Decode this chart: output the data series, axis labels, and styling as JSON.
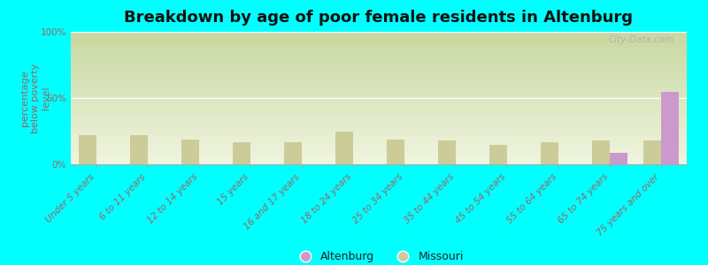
{
  "title": "Breakdown by age of poor female residents in Altenburg",
  "ylabel": "percentage\nbelow poverty\nlevel",
  "categories": [
    "Under 5 years",
    "6 to 11 years",
    "12 to 14 years",
    "15 years",
    "16 and 17 years",
    "18 to 24 years",
    "25 to 34 years",
    "35 to 44 years",
    "45 to 54 years",
    "55 to 64 years",
    "65 to 74 years",
    "75 years and over"
  ],
  "altenburg_values": [
    0,
    0,
    0,
    0,
    0,
    0,
    0,
    0,
    0,
    0,
    9,
    55
  ],
  "missouri_values": [
    22,
    22,
    19,
    17,
    17,
    25,
    19,
    18,
    15,
    17,
    18,
    18
  ],
  "altenburg_color": "#cc99cc",
  "missouri_color": "#cccc99",
  "background_color": "#00ffff",
  "ylim": [
    0,
    100
  ],
  "yticks": [
    0,
    50,
    100
  ],
  "ytick_labels": [
    "0%",
    "50%",
    "100%"
  ],
  "bar_width": 0.35,
  "title_fontsize": 13,
  "axis_label_fontsize": 8,
  "tick_fontsize": 7.5,
  "legend_label_altenburg": "Altenburg",
  "legend_label_missouri": "Missouri",
  "watermark": "City-Data.com",
  "axis_color": "#996666",
  "legend_text_color": "#222222"
}
